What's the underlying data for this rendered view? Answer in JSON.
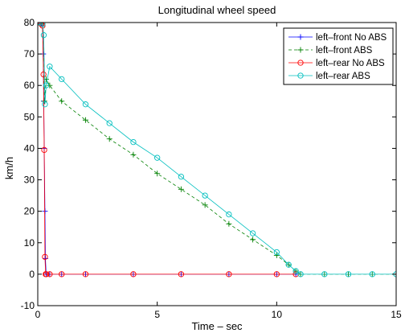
{
  "chart_data": {
    "type": "line",
    "title": "Longitudinal wheel speed",
    "xlabel": "Time – sec",
    "ylabel": "km/h",
    "xlim": [
      0,
      15
    ],
    "ylim": [
      -10,
      80
    ],
    "xticks": [
      0,
      5,
      10,
      15
    ],
    "yticks": [
      -10,
      0,
      10,
      20,
      30,
      40,
      50,
      60,
      70,
      80
    ],
    "grid": false,
    "legend_position": "top-right",
    "series": [
      {
        "name": "left–front No ABS",
        "color": "#0000ff",
        "marker": "plus",
        "dash": "solid",
        "x": [
          0,
          0.05,
          0.1,
          0.15,
          0.2,
          0.23,
          0.25,
          0.27,
          0.3,
          0.32,
          0.35,
          0.5,
          1,
          2,
          4,
          6,
          8,
          10,
          10.8
        ],
        "y": [
          80,
          80,
          80,
          79.5,
          79,
          70,
          55,
          40,
          20,
          5,
          0,
          0,
          0,
          0,
          0,
          0,
          0,
          0,
          0
        ]
      },
      {
        "name": "left–front ABS",
        "color": "#008000",
        "marker": "plus",
        "dash": "dashed",
        "x": [
          0,
          0.1,
          0.2,
          0.28,
          0.35,
          0.5,
          1,
          2,
          3,
          4,
          5,
          6,
          7,
          8,
          9,
          10,
          10.5,
          10.8,
          11,
          12,
          13,
          14,
          15
        ],
        "y": [
          80,
          80,
          79.5,
          55,
          62,
          60,
          55,
          49,
          43,
          38,
          32,
          27,
          22,
          16,
          11,
          6,
          3,
          1,
          0,
          0,
          0,
          0,
          0
        ]
      },
      {
        "name": "left–rear No ABS",
        "color": "#ff0000",
        "marker": "circle",
        "dash": "solid",
        "x": [
          0,
          0.05,
          0.1,
          0.15,
          0.2,
          0.24,
          0.27,
          0.3,
          0.33,
          0.36,
          0.5,
          1,
          2,
          4,
          6,
          8,
          10,
          10.8
        ],
        "y": [
          80,
          80,
          80,
          79.5,
          79,
          63.5,
          39.5,
          5.5,
          0,
          0,
          0,
          0,
          0,
          0,
          0,
          0,
          0,
          0
        ]
      },
      {
        "name": "left–rear ABS",
        "color": "#00bfbf",
        "marker": "circle",
        "dash": "solid",
        "x": [
          0,
          0.1,
          0.2,
          0.25,
          0.3,
          0.35,
          0.5,
          1,
          2,
          3,
          4,
          5,
          6,
          7,
          8,
          9,
          10,
          10.5,
          10.8,
          11,
          12,
          13,
          14,
          15
        ],
        "y": [
          80,
          80,
          79.5,
          76,
          54,
          60,
          66,
          62,
          54,
          48,
          42,
          37,
          31,
          25,
          19,
          13,
          7,
          3,
          1,
          0,
          0,
          0,
          0,
          0
        ]
      }
    ]
  }
}
